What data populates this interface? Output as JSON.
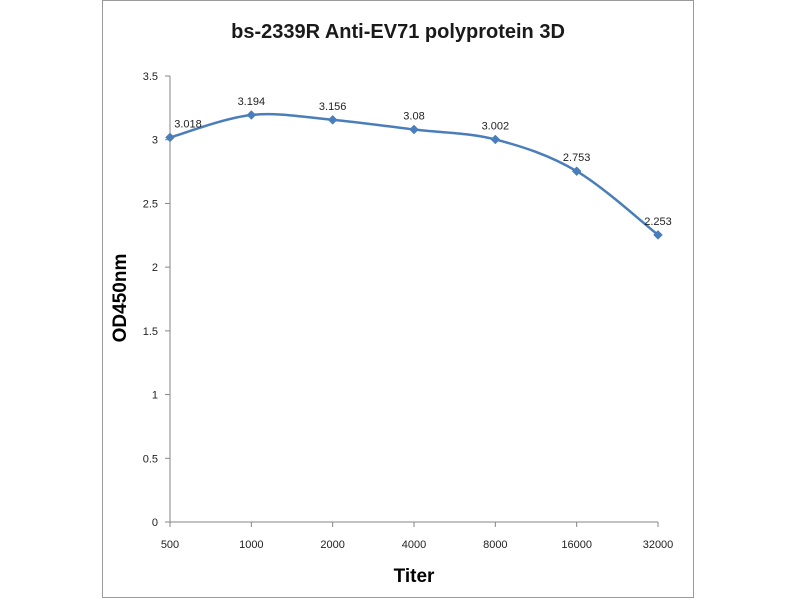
{
  "chart_data": {
    "type": "line",
    "title": "bs-2339R Anti-EV71 polyprotein 3D",
    "xlabel": "Titer",
    "ylabel": "OD450nm",
    "categories": [
      "500",
      "1000",
      "2000",
      "4000",
      "8000",
      "16000",
      "32000"
    ],
    "series": [
      {
        "values": [
          3.018,
          3.194,
          3.156,
          3.08,
          3.002,
          2.753,
          2.253
        ]
      }
    ],
    "data_labels": [
      "3.018",
      "3.194",
      "3.156",
      "3.08",
      "3.002",
      "2.753",
      "2.253"
    ],
    "ylim": [
      0,
      3.5
    ],
    "yticks": [
      0,
      0.5,
      1,
      1.5,
      2,
      2.5,
      3,
      3.5
    ],
    "ytick_labels": [
      "0",
      "0.5",
      "1",
      "1.5",
      "2",
      "2.5",
      "3",
      "3.5"
    ],
    "grid": false,
    "legend": "none",
    "colors": {
      "series": "#4a7ebb",
      "axis": "#868686"
    }
  }
}
